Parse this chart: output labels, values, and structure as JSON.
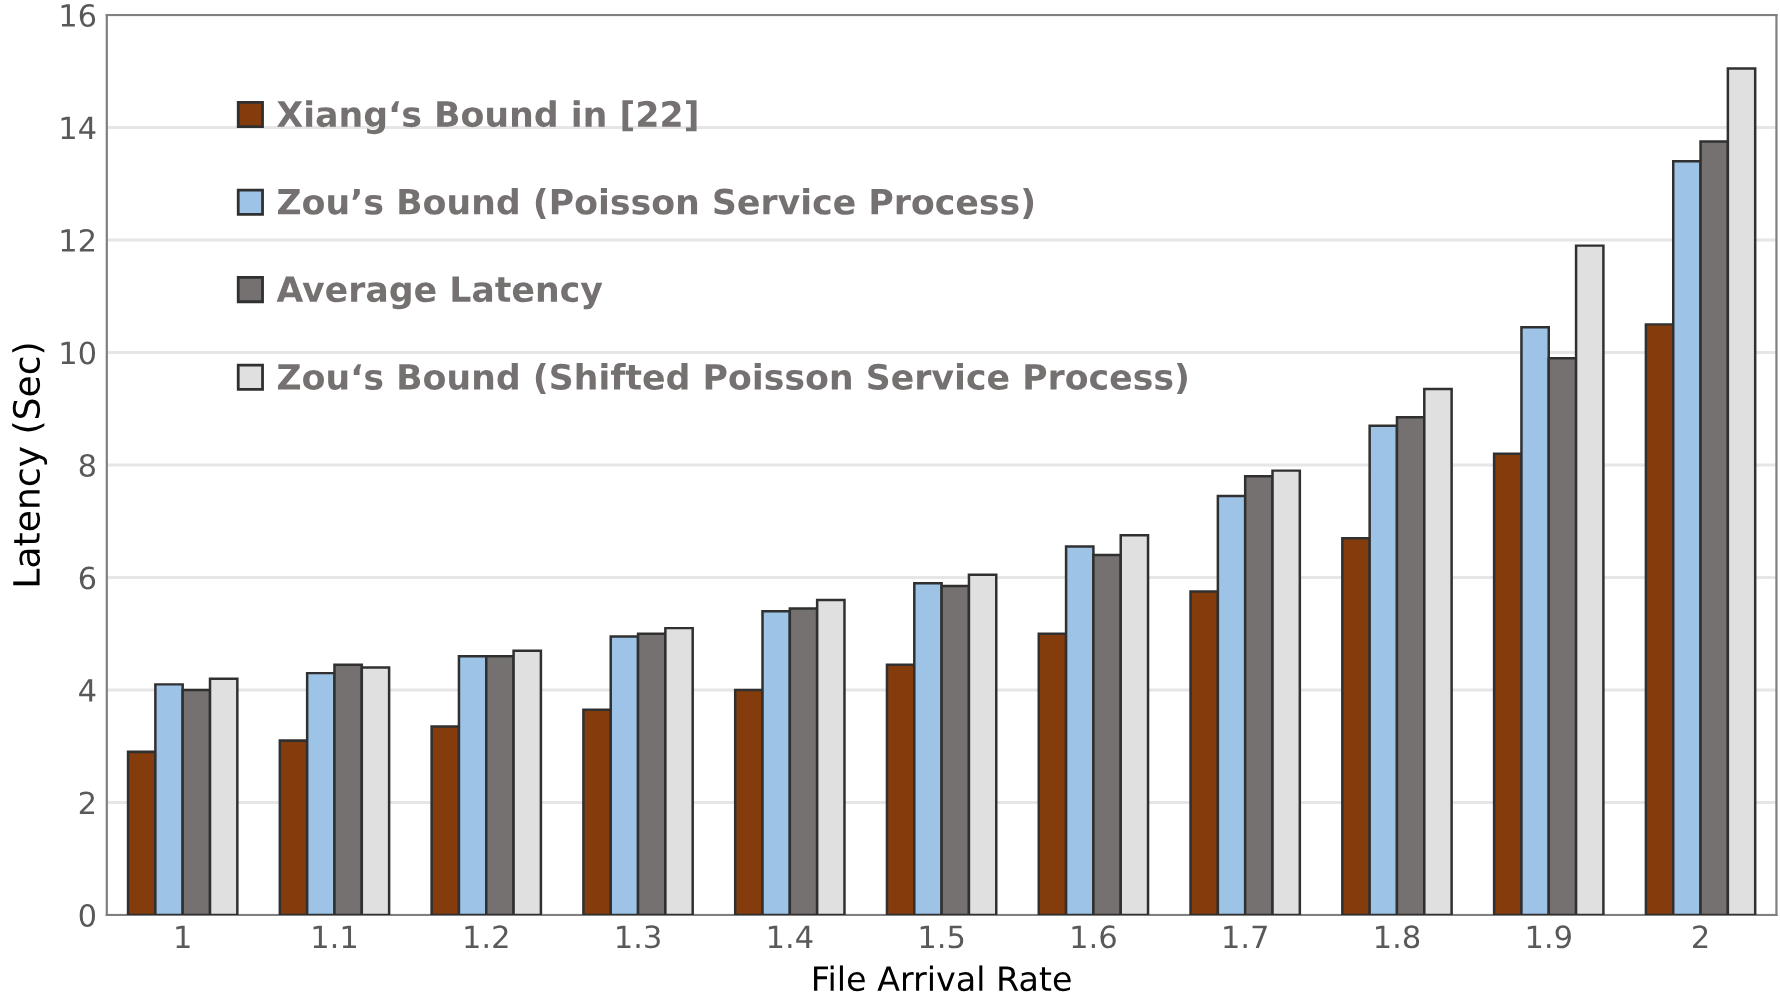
{
  "chart_data": {
    "type": "bar",
    "xlabel": "File Arrival Rate",
    "ylabel": "Latency (Sec)",
    "categories": [
      "1",
      "1.1",
      "1.2",
      "1.3",
      "1.4",
      "1.5",
      "1.6",
      "1.7",
      "1.8",
      "1.9",
      "2"
    ],
    "series": [
      {
        "name": "Xiang‘s Bound in [22]",
        "color": "#843c0c",
        "values": [
          2.9,
          3.1,
          3.35,
          3.65,
          4.0,
          4.45,
          5.0,
          5.75,
          6.7,
          8.2,
          10.5
        ]
      },
      {
        "name": "Zou’s Bound (Poisson Service Process)",
        "color": "#9dc3e6",
        "values": [
          4.1,
          4.3,
          4.6,
          4.95,
          5.4,
          5.9,
          6.55,
          7.45,
          8.7,
          10.45,
          13.4
        ]
      },
      {
        "name": "Average Latency",
        "color": "#767171",
        "values": [
          4.0,
          4.45,
          4.6,
          5.0,
          5.45,
          5.85,
          6.4,
          7.8,
          8.85,
          9.9,
          13.75
        ]
      },
      {
        "name": "Zou‘s Bound (Shifted Poisson Service Process)",
        "color": "#e0e0e0",
        "values": [
          4.2,
          4.4,
          4.7,
          5.1,
          5.6,
          6.05,
          6.75,
          7.9,
          9.35,
          11.9,
          15.05
        ]
      }
    ],
    "ylim": [
      0,
      16
    ],
    "yticks": [
      0,
      2,
      4,
      6,
      8,
      10,
      12,
      14,
      16
    ],
    "grid": "y",
    "legend": "top left"
  }
}
